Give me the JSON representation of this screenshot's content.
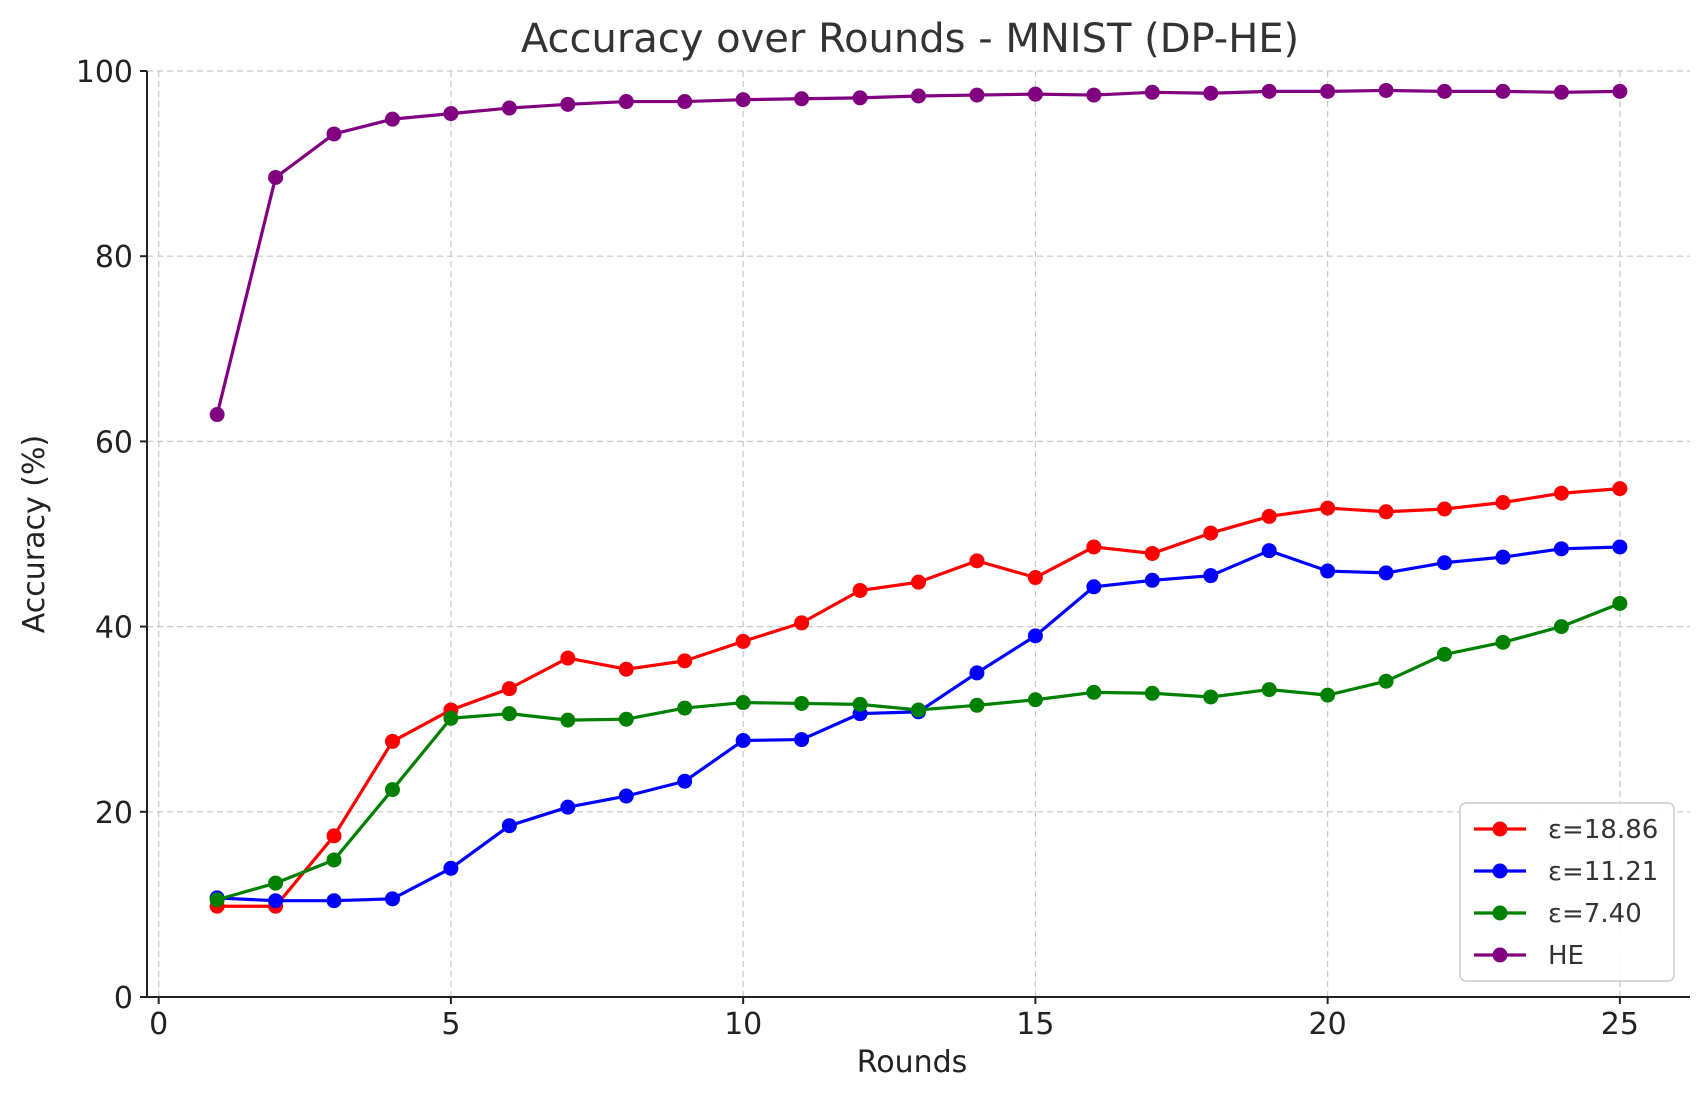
{
  "chart_data": {
    "type": "line",
    "title": "Accuracy over Rounds - MNIST (DP-HE)",
    "xlabel": "Rounds",
    "ylabel": "Accuracy (%)",
    "xlim": [
      -0.2,
      26.2
    ],
    "ylim": [
      0,
      100
    ],
    "xticks": [
      0,
      5,
      10,
      15,
      20,
      25
    ],
    "yticks": [
      0,
      20,
      40,
      60,
      80,
      100
    ],
    "grid": true,
    "legend_position": "bottom-right",
    "x": [
      1,
      2,
      3,
      4,
      5,
      6,
      7,
      8,
      9,
      10,
      11,
      12,
      13,
      14,
      15,
      16,
      17,
      18,
      19,
      20,
      21,
      22,
      23,
      24,
      25
    ],
    "series": [
      {
        "name": "ε=18.86",
        "color": "#ff0000",
        "values": [
          9.8,
          9.8,
          17.4,
          27.6,
          31.0,
          33.3,
          36.6,
          35.4,
          36.3,
          38.4,
          40.4,
          43.9,
          44.8,
          47.1,
          45.3,
          48.6,
          47.9,
          50.1,
          51.9,
          52.8,
          52.4,
          52.7,
          53.4,
          54.4,
          54.9
        ]
      },
      {
        "name": "ε=11.21",
        "color": "#0000ff",
        "values": [
          10.7,
          10.4,
          10.4,
          10.6,
          13.9,
          18.5,
          20.5,
          21.7,
          23.3,
          27.7,
          27.8,
          30.6,
          30.8,
          35.0,
          39.0,
          44.3,
          45.0,
          45.5,
          48.2,
          46.0,
          45.8,
          46.9,
          47.5,
          48.4,
          48.6
        ]
      },
      {
        "name": "ε=7.40",
        "color": "#008000",
        "values": [
          10.5,
          12.3,
          14.8,
          22.4,
          30.1,
          30.6,
          29.9,
          30.0,
          31.2,
          31.8,
          31.7,
          31.6,
          31.0,
          31.5,
          32.1,
          32.9,
          32.8,
          32.4,
          33.2,
          32.6,
          34.1,
          37.0,
          38.3,
          40.0,
          42.5
        ]
      },
      {
        "name": "HE",
        "color": "#800080",
        "values": [
          62.9,
          88.5,
          93.2,
          94.8,
          95.4,
          96.0,
          96.4,
          96.7,
          96.7,
          96.9,
          97.0,
          97.1,
          97.3,
          97.4,
          97.5,
          97.4,
          97.7,
          97.6,
          97.8,
          97.8,
          97.9,
          97.8,
          97.8,
          97.7,
          97.8
        ]
      }
    ]
  }
}
